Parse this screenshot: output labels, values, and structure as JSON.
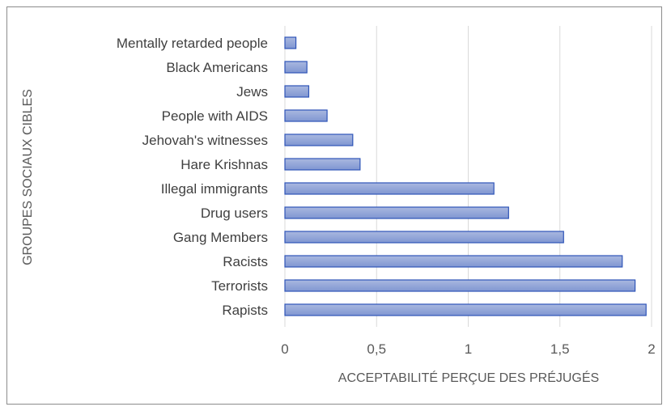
{
  "chart_data": {
    "type": "bar",
    "orientation": "horizontal",
    "categories": [
      "Mentally retarded people",
      "Black Americans",
      "Jews",
      "People with AIDS",
      "Jehovah's witnesses",
      "Hare Krishnas",
      "Illegal immigrants",
      "Drug users",
      "Gang Members ",
      "Racists",
      "Terrorists",
      "Rapists"
    ],
    "values": [
      0.06,
      0.12,
      0.13,
      0.23,
      0.37,
      0.41,
      1.14,
      1.22,
      1.52,
      1.84,
      1.91,
      1.97
    ],
    "xlabel": "ACCEPTABILITÉ PERÇUE DES PRÉJUGÉS",
    "ylabel": "GROUPES SOCIAUX CIBLES",
    "xlim": [
      0,
      2
    ],
    "xticks": [
      "0",
      "0,5",
      "1",
      "1,5",
      "2"
    ],
    "grid": true,
    "colors": {
      "bar_fill_top": "#a9b8e0",
      "bar_fill_bottom": "#7f96d2",
      "bar_stroke": "#2f55b8",
      "grid": "#d9d9d9"
    }
  }
}
